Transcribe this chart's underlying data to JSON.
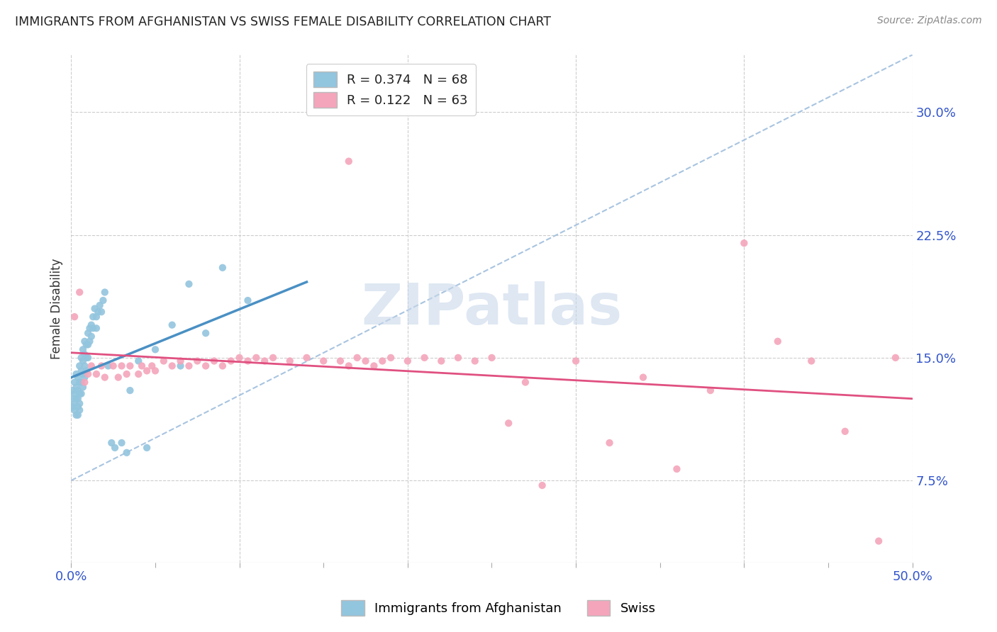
{
  "title": "IMMIGRANTS FROM AFGHANISTAN VS SWISS FEMALE DISABILITY CORRELATION CHART",
  "source": "Source: ZipAtlas.com",
  "ylabel_ticks": [
    0.075,
    0.15,
    0.225,
    0.3
  ],
  "ylabel_labels": [
    "7.5%",
    "15.0%",
    "22.5%",
    "30.0%"
  ],
  "ylabel_label": "Female Disability",
  "legend1_label": "Immigrants from Afghanistan",
  "legend2_label": "Swiss",
  "R1": 0.374,
  "N1": 68,
  "R2": 0.122,
  "N2": 63,
  "blue_color": "#92c5de",
  "pink_color": "#f4a5bb",
  "blue_line_color": "#4a90c4",
  "pink_line_color": "#e05080",
  "dash_line_color": "#a8c4e0",
  "watermark": "ZIPatlas",
  "blue_scatter_x": [
    0.001,
    0.001,
    0.001,
    0.002,
    0.002,
    0.002,
    0.002,
    0.003,
    0.003,
    0.003,
    0.003,
    0.004,
    0.004,
    0.004,
    0.004,
    0.004,
    0.005,
    0.005,
    0.005,
    0.005,
    0.005,
    0.006,
    0.006,
    0.006,
    0.006,
    0.007,
    0.007,
    0.007,
    0.007,
    0.008,
    0.008,
    0.008,
    0.008,
    0.009,
    0.009,
    0.009,
    0.01,
    0.01,
    0.01,
    0.011,
    0.011,
    0.012,
    0.012,
    0.013,
    0.013,
    0.014,
    0.015,
    0.015,
    0.016,
    0.017,
    0.018,
    0.019,
    0.02,
    0.022,
    0.024,
    0.026,
    0.03,
    0.033,
    0.035,
    0.04,
    0.045,
    0.05,
    0.06,
    0.065,
    0.07,
    0.08,
    0.09,
    0.105
  ],
  "blue_scatter_y": [
    0.13,
    0.125,
    0.12,
    0.135,
    0.128,
    0.122,
    0.118,
    0.132,
    0.14,
    0.125,
    0.115,
    0.138,
    0.13,
    0.125,
    0.12,
    0.115,
    0.145,
    0.135,
    0.128,
    0.122,
    0.118,
    0.15,
    0.142,
    0.135,
    0.128,
    0.155,
    0.148,
    0.14,
    0.132,
    0.16,
    0.152,
    0.145,
    0.138,
    0.158,
    0.15,
    0.142,
    0.165,
    0.158,
    0.15,
    0.168,
    0.16,
    0.17,
    0.163,
    0.175,
    0.168,
    0.18,
    0.175,
    0.168,
    0.178,
    0.182,
    0.178,
    0.185,
    0.19,
    0.145,
    0.098,
    0.095,
    0.098,
    0.092,
    0.13,
    0.148,
    0.095,
    0.155,
    0.17,
    0.145,
    0.195,
    0.165,
    0.205,
    0.185
  ],
  "pink_scatter_x": [
    0.002,
    0.005,
    0.008,
    0.01,
    0.012,
    0.015,
    0.018,
    0.02,
    0.025,
    0.028,
    0.03,
    0.033,
    0.035,
    0.04,
    0.042,
    0.045,
    0.048,
    0.05,
    0.055,
    0.06,
    0.065,
    0.07,
    0.075,
    0.08,
    0.085,
    0.09,
    0.095,
    0.1,
    0.105,
    0.11,
    0.115,
    0.12,
    0.13,
    0.14,
    0.15,
    0.16,
    0.165,
    0.17,
    0.175,
    0.18,
    0.185,
    0.19,
    0.2,
    0.21,
    0.22,
    0.23,
    0.24,
    0.25,
    0.26,
    0.27,
    0.3,
    0.32,
    0.34,
    0.36,
    0.38,
    0.4,
    0.42,
    0.44,
    0.46,
    0.48,
    0.49,
    0.165,
    0.28
  ],
  "pink_scatter_y": [
    0.175,
    0.19,
    0.135,
    0.14,
    0.145,
    0.14,
    0.145,
    0.138,
    0.145,
    0.138,
    0.145,
    0.14,
    0.145,
    0.14,
    0.145,
    0.142,
    0.145,
    0.142,
    0.148,
    0.145,
    0.148,
    0.145,
    0.148,
    0.145,
    0.148,
    0.145,
    0.148,
    0.15,
    0.148,
    0.15,
    0.148,
    0.15,
    0.148,
    0.15,
    0.148,
    0.148,
    0.145,
    0.15,
    0.148,
    0.145,
    0.148,
    0.15,
    0.148,
    0.15,
    0.148,
    0.15,
    0.148,
    0.15,
    0.11,
    0.135,
    0.148,
    0.098,
    0.138,
    0.082,
    0.13,
    0.22,
    0.16,
    0.148,
    0.105,
    0.038,
    0.15,
    0.27,
    0.072
  ],
  "xmin": 0.0,
  "xmax": 0.5,
  "ymin": 0.025,
  "ymax": 0.335,
  "blue_line_xstart": 0.0,
  "blue_line_xend": 0.14,
  "dash_line_x": [
    0.0,
    0.5
  ],
  "dash_line_y": [
    0.075,
    0.335
  ],
  "title_color": "#222222",
  "axis_color": "#3355cc",
  "grid_color": "#cccccc",
  "background_color": "#ffffff"
}
